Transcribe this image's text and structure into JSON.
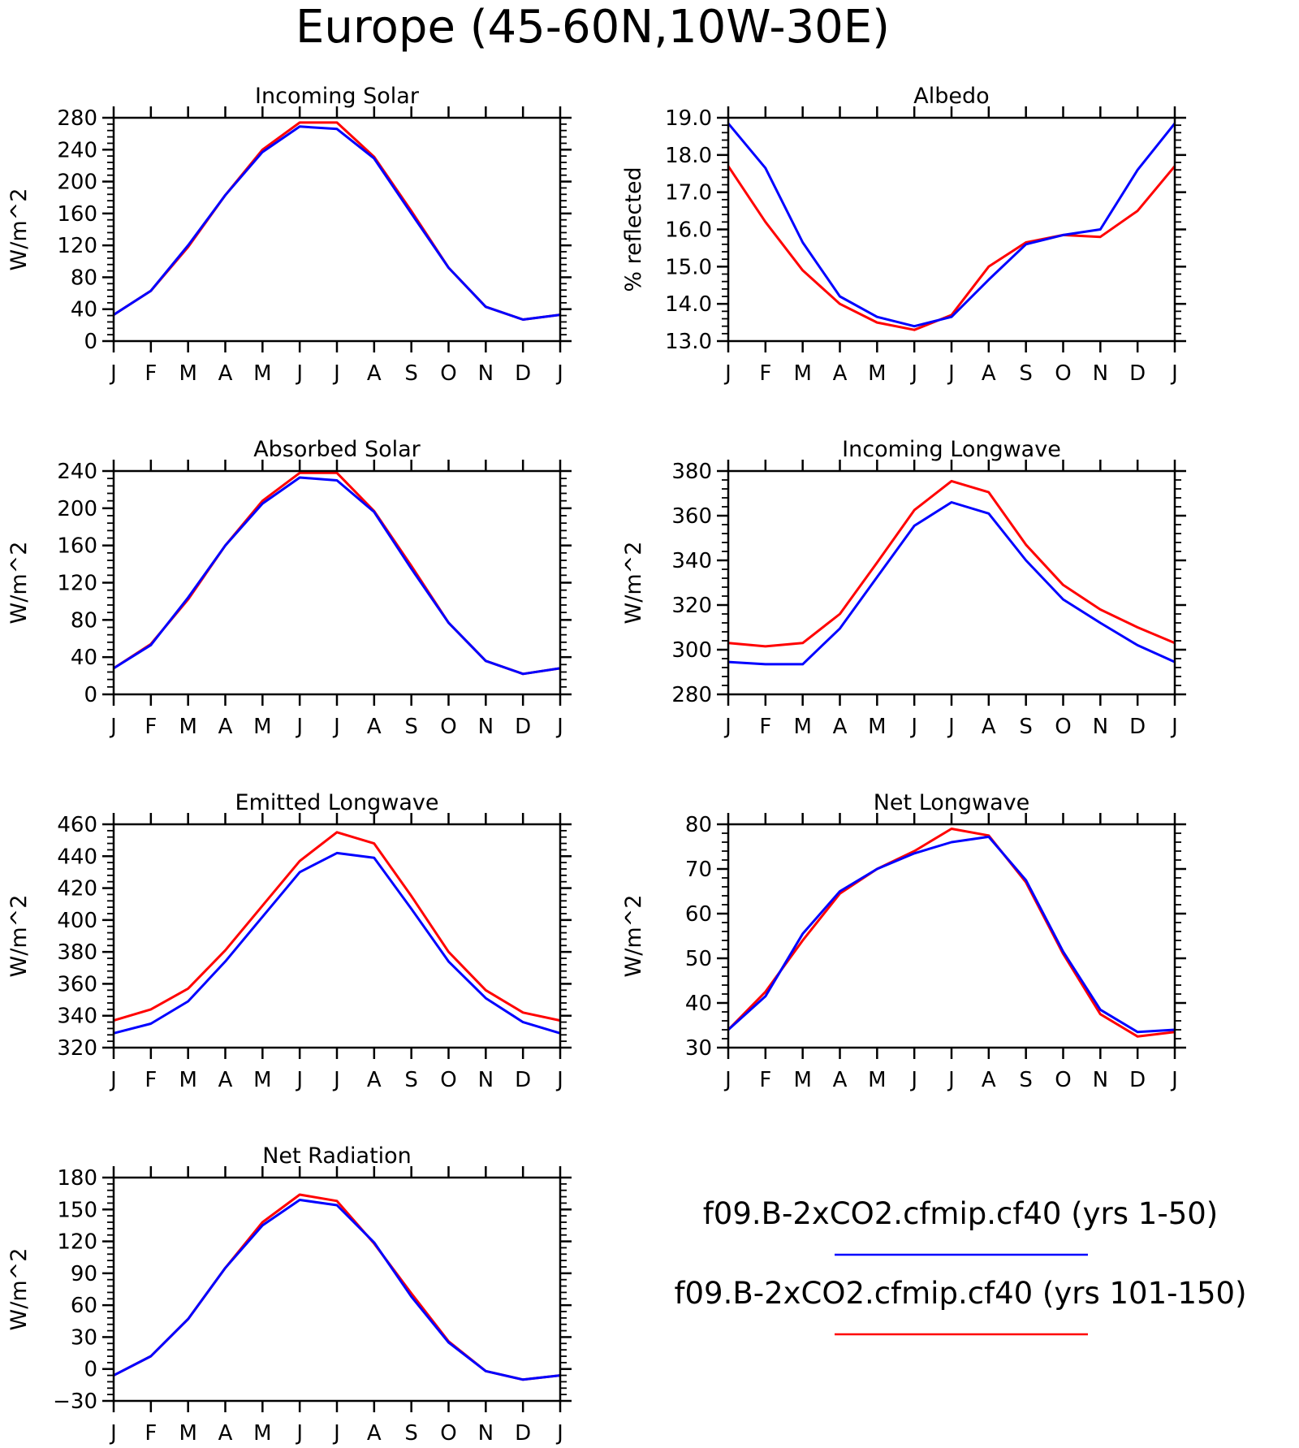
{
  "title": "Europe (45-60N,10W-30E)",
  "legend": [
    {
      "label": "f09.B-2xCO2.cfmip.cf40 (yrs 1-50)",
      "color": "#0000ff"
    },
    {
      "label": "f09.B-2xCO2.cfmip.cf40 (yrs 101-150)",
      "color": "#ff0000"
    }
  ],
  "chart_data": [
    {
      "type": "line",
      "title": "Incoming Solar",
      "ylabel": "W/m^2",
      "categories": [
        "J",
        "F",
        "M",
        "A",
        "M",
        "J",
        "J",
        "A",
        "S",
        "O",
        "N",
        "D",
        "J"
      ],
      "ylim": [
        0,
        280
      ],
      "yticks": [
        0,
        40,
        80,
        120,
        160,
        200,
        240,
        280
      ],
      "ytick_labels": [
        "0",
        "40",
        "80",
        "120",
        "160",
        "200",
        "240",
        "280"
      ],
      "series": [
        {
          "color": "#ff0000",
          "values": [
            33,
            63,
            118,
            183,
            240,
            274,
            274,
            231,
            163,
            92,
            43,
            27,
            33
          ]
        },
        {
          "color": "#0000ff",
          "values": [
            33,
            63,
            120,
            183,
            237,
            269,
            266,
            229,
            160,
            92,
            43,
            27,
            33
          ]
        }
      ]
    },
    {
      "type": "line",
      "title": "Albedo",
      "ylabel": "% reflected",
      "categories": [
        "J",
        "F",
        "M",
        "A",
        "M",
        "J",
        "J",
        "A",
        "S",
        "O",
        "N",
        "D",
        "J"
      ],
      "ylim": [
        13.0,
        19.0
      ],
      "yticks": [
        13,
        14,
        15,
        16,
        17,
        18,
        19
      ],
      "ytick_labels": [
        "13.0",
        "14.0",
        "15.0",
        "16.0",
        "17.0",
        "18.0",
        "19.0"
      ],
      "series": [
        {
          "color": "#ff0000",
          "values": [
            17.7,
            16.2,
            14.9,
            14.0,
            13.5,
            13.3,
            13.7,
            15.0,
            15.65,
            15.85,
            15.8,
            16.5,
            17.7
          ]
        },
        {
          "color": "#0000ff",
          "values": [
            18.85,
            17.65,
            15.65,
            14.2,
            13.65,
            13.4,
            13.65,
            14.65,
            15.6,
            15.85,
            16.0,
            17.6,
            18.85
          ]
        }
      ]
    },
    {
      "type": "line",
      "title": "Absorbed Solar",
      "ylabel": "W/m^2",
      "categories": [
        "J",
        "F",
        "M",
        "A",
        "M",
        "J",
        "J",
        "A",
        "S",
        "O",
        "N",
        "D",
        "J"
      ],
      "ylim": [
        0,
        240
      ],
      "yticks": [
        0,
        40,
        80,
        120,
        160,
        200,
        240
      ],
      "ytick_labels": [
        "0",
        "40",
        "80",
        "120",
        "160",
        "200",
        "240"
      ],
      "series": [
        {
          "color": "#ff0000",
          "values": [
            28,
            54,
            102,
            160,
            208,
            238,
            238,
            197,
            138,
            77,
            36,
            22,
            28
          ]
        },
        {
          "color": "#0000ff",
          "values": [
            28,
            53,
            104,
            160,
            205,
            233,
            230,
            196,
            135,
            77,
            36,
            22,
            28
          ]
        }
      ]
    },
    {
      "type": "line",
      "title": "Incoming Longwave",
      "ylabel": "W/m^2",
      "categories": [
        "J",
        "F",
        "M",
        "A",
        "M",
        "J",
        "J",
        "A",
        "S",
        "O",
        "N",
        "D",
        "J"
      ],
      "ylim": [
        280,
        380
      ],
      "yticks": [
        280,
        300,
        320,
        340,
        360,
        380
      ],
      "ytick_labels": [
        "280",
        "300",
        "320",
        "340",
        "360",
        "380"
      ],
      "series": [
        {
          "color": "#ff0000",
          "values": [
            303,
            301.5,
            303,
            316,
            339,
            362.5,
            375.5,
            370.5,
            347,
            329,
            318,
            310,
            303
          ]
        },
        {
          "color": "#0000ff",
          "values": [
            294.5,
            293.5,
            293.5,
            309.5,
            332.5,
            355.5,
            366,
            361,
            340,
            322.5,
            312,
            302,
            294.5
          ]
        }
      ]
    },
    {
      "type": "line",
      "title": "Emitted Longwave",
      "ylabel": "W/m^2",
      "categories": [
        "J",
        "F",
        "M",
        "A",
        "M",
        "J",
        "J",
        "A",
        "S",
        "O",
        "N",
        "D",
        "J"
      ],
      "ylim": [
        320,
        460
      ],
      "yticks": [
        320,
        340,
        360,
        380,
        400,
        420,
        440,
        460
      ],
      "ytick_labels": [
        "320",
        "340",
        "360",
        "380",
        "400",
        "420",
        "440",
        "460"
      ],
      "series": [
        {
          "color": "#ff0000",
          "values": [
            337,
            344,
            357,
            381,
            409,
            437,
            455,
            448,
            415,
            380,
            356,
            342,
            337
          ]
        },
        {
          "color": "#0000ff",
          "values": [
            329,
            335,
            349,
            374,
            402,
            430,
            442,
            439,
            407,
            374,
            351,
            336,
            329
          ]
        }
      ]
    },
    {
      "type": "line",
      "title": "Net Longwave",
      "ylabel": "W/m^2",
      "categories": [
        "J",
        "F",
        "M",
        "A",
        "M",
        "J",
        "J",
        "A",
        "S",
        "O",
        "N",
        "D",
        "J"
      ],
      "ylim": [
        30,
        80
      ],
      "yticks": [
        30,
        40,
        50,
        60,
        70,
        80
      ],
      "ytick_labels": [
        "30",
        "40",
        "50",
        "60",
        "70",
        "80"
      ],
      "series": [
        {
          "color": "#ff0000",
          "values": [
            34,
            42.5,
            54,
            64.5,
            70,
            74,
            79,
            77.5,
            67,
            51,
            37.5,
            32.5,
            33.5
          ]
        },
        {
          "color": "#0000ff",
          "values": [
            34,
            41.5,
            55.5,
            65,
            70,
            73.5,
            76,
            77.2,
            67.5,
            51.5,
            38.5,
            33.5,
            34
          ]
        }
      ]
    },
    {
      "type": "line",
      "title": "Net Radiation",
      "ylabel": "W/m^2",
      "categories": [
        "J",
        "F",
        "M",
        "A",
        "M",
        "J",
        "J",
        "A",
        "S",
        "O",
        "N",
        "D",
        "J"
      ],
      "ylim": [
        -30,
        180
      ],
      "yticks": [
        -30,
        0,
        30,
        60,
        90,
        120,
        150,
        180
      ],
      "ytick_labels": [
        "-30",
        "0",
        "30",
        "60",
        "90",
        "120",
        "150",
        "180"
      ],
      "series": [
        {
          "color": "#ff0000",
          "values": [
            -6,
            12,
            47,
            95,
            138,
            164,
            158,
            118,
            71,
            26,
            -2,
            -10,
            -6
          ]
        },
        {
          "color": "#0000ff",
          "values": [
            -6,
            12,
            47,
            95,
            135,
            159,
            154,
            119,
            68,
            25,
            -2,
            -10,
            -6
          ]
        }
      ]
    }
  ]
}
